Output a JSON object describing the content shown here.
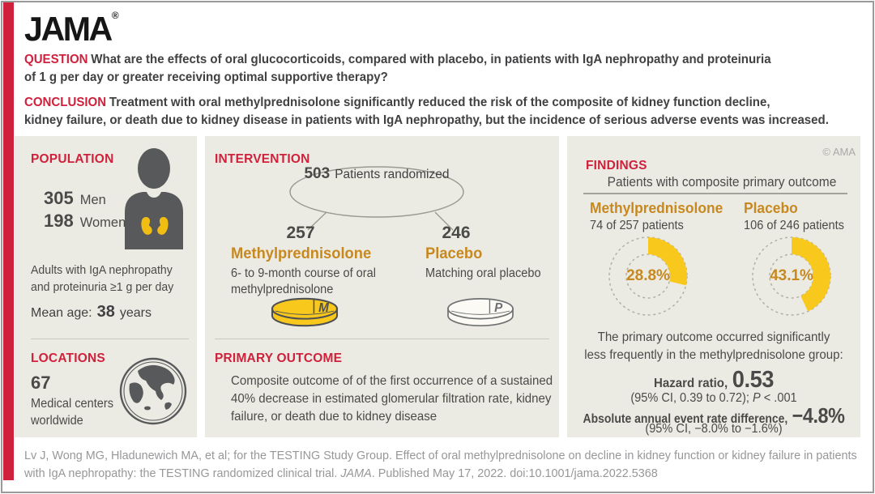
{
  "brand": {
    "logo": "JAMA",
    "reg": "®"
  },
  "header": {
    "question": {
      "label": "QUESTION",
      "lines": [
        "What are the effects of oral glucocorticoids, compared with placebo, in patients with IgA nephropathy and proteinuria",
        "of 1 g per day or greater receiving optimal supportive therapy?"
      ]
    },
    "conclusion": {
      "label": "CONCLUSION",
      "lines": [
        "Treatment with oral methylprednisolone significantly reduced the risk of the composite of kidney function decline,",
        "kidney failure, or death due to kidney disease in patients with IgA nephropathy, but the incidence of serious adverse events was increased."
      ]
    }
  },
  "population": {
    "heading": "POPULATION",
    "stats": [
      {
        "value": "305",
        "label": "Men"
      },
      {
        "value": "198",
        "label": "Women"
      }
    ],
    "description_lines": [
      "Adults with IgA nephropathy",
      "and proteinuria ≥1 g per day"
    ],
    "mean_age": {
      "label": "Mean age:",
      "value": "38",
      "unit": "years"
    }
  },
  "locations": {
    "heading": "LOCATIONS",
    "value": "67",
    "description_lines": [
      "Medical centers",
      "worldwide"
    ]
  },
  "intervention": {
    "heading": "INTERVENTION",
    "randomized": {
      "value": "503",
      "label": "Patients randomized"
    },
    "arms": [
      {
        "count": "257",
        "name": "Methylprednisolone",
        "description_lines": [
          "6- to 9-month course of oral",
          "methylprednisolone"
        ],
        "pill_letter": "M"
      },
      {
        "count": "246",
        "name": "Placebo",
        "description_lines": [
          "Matching oral placebo",
          ""
        ],
        "pill_letter": "P"
      }
    ]
  },
  "primary_outcome": {
    "heading": "PRIMARY OUTCOME",
    "lines": [
      "Composite outcome of of the first occurrence of a sustained",
      "40% decrease in estimated glomerular filtration rate, kidney",
      "failure, or death due to kidney disease"
    ]
  },
  "findings": {
    "heading": "FINDINGS",
    "copyright": "© AMA",
    "subtitle": "Patients with composite primary outcome",
    "groups": [
      {
        "name": "Methylprednisolone",
        "detail": "74 of 257 patients",
        "pct_label": "28.8%"
      },
      {
        "name": "Placebo",
        "detail": "106 of 246 patients",
        "pct_label": "43.1%"
      }
    ],
    "summary_lines": [
      "The primary outcome occurred significantly",
      "less frequently in the methylprednisolone group:"
    ],
    "hazard": {
      "label": "Hazard ratio,",
      "value": "0.53",
      "ci_pre": "(95% CI, 0.39 to 0.72); ",
      "p": "P",
      "p_rest": " < .001"
    },
    "rate": {
      "label": "Absolute annual event rate difference,",
      "value": "−4.8%",
      "ci": "(95% CI, −8.0% to −1.6%)"
    }
  },
  "citation": {
    "line1": "Lv J, Wong MG, Hladunewich MA, et al; for the TESTING Study Group. Effect of oral methylprednisolone on decline in kidney function or kidney failure in patients",
    "line2_pre": "with IgA nephropathy: the TESTING randomized clinical trial. ",
    "line2_italic": "JAMA",
    "line2_post": ". Published May 17, 2022. doi:10.1001/jama.2022.5368"
  },
  "chart_data": {
    "type": "pie",
    "style": "paired-donuts",
    "title": "Patients with composite primary outcome",
    "series": [
      {
        "name": "Methylprednisolone",
        "pct": 28.8,
        "numerator": 74,
        "denominator": 257
      },
      {
        "name": "Placebo",
        "pct": 43.1,
        "numerator": 106,
        "denominator": 246
      }
    ],
    "arc_color": "#F8C81D",
    "track_style": "dashed-gray"
  },
  "colors": {
    "accent_red": "#D0213C",
    "gold": "#C7891F",
    "yellow": "#F8C81D",
    "panel_bg": "#ECEBE3",
    "icon_gray": "#58595B",
    "text": "#414042"
  }
}
